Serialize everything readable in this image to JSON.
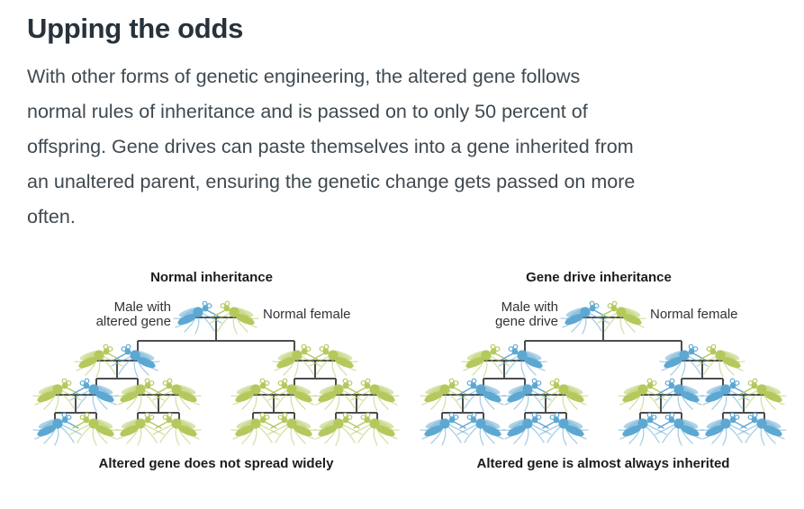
{
  "article": {
    "title": "Upping the odds",
    "body_lines": [
      "With other forms of genetic engineering, the altered gene follows",
      "normal rules of inheritance and is passed on to only 50 percent of",
      "offspring. Gene drives can paste themselves into a gene inherited from",
      "an unaltered parent, ensuring the genetic change gets passed on more",
      "often."
    ]
  },
  "legend": {
    "altered_color": "#5da8d2",
    "normal_color": "#b4c95c",
    "line_color": "#4d4d4f"
  },
  "diagrams": [
    {
      "title": "Normal inheritance",
      "male_label_line1": "Male with",
      "male_label_line2": "altered gene",
      "female_label": "Normal female",
      "caption": "Altered gene does not spread widely",
      "generations": {
        "parents": [
          "altered",
          "normal"
        ],
        "gen2": [
          "normal",
          "altered",
          "normal",
          "normal"
        ],
        "gen3": [
          "normal",
          "altered",
          "normal",
          "normal",
          "normal",
          "normal",
          "normal",
          "normal"
        ],
        "gen4": [
          "altered",
          "normal",
          "normal",
          "normal",
          "normal",
          "normal",
          "normal",
          "normal"
        ]
      }
    },
    {
      "title": "Gene drive inheritance",
      "male_label_line1": "Male with",
      "male_label_line2": "gene drive",
      "female_label": "Normal female",
      "caption": "Altered gene is almost always inherited",
      "generations": {
        "parents": [
          "altered",
          "normal"
        ],
        "gen2": [
          "normal",
          "altered",
          "altered",
          "normal"
        ],
        "gen3": [
          "normal",
          "altered",
          "altered",
          "normal",
          "normal",
          "altered",
          "altered",
          "normal"
        ],
        "gen4": [
          "altered",
          "altered",
          "altered",
          "altered",
          "altered",
          "altered",
          "altered",
          "altered"
        ]
      }
    }
  ]
}
